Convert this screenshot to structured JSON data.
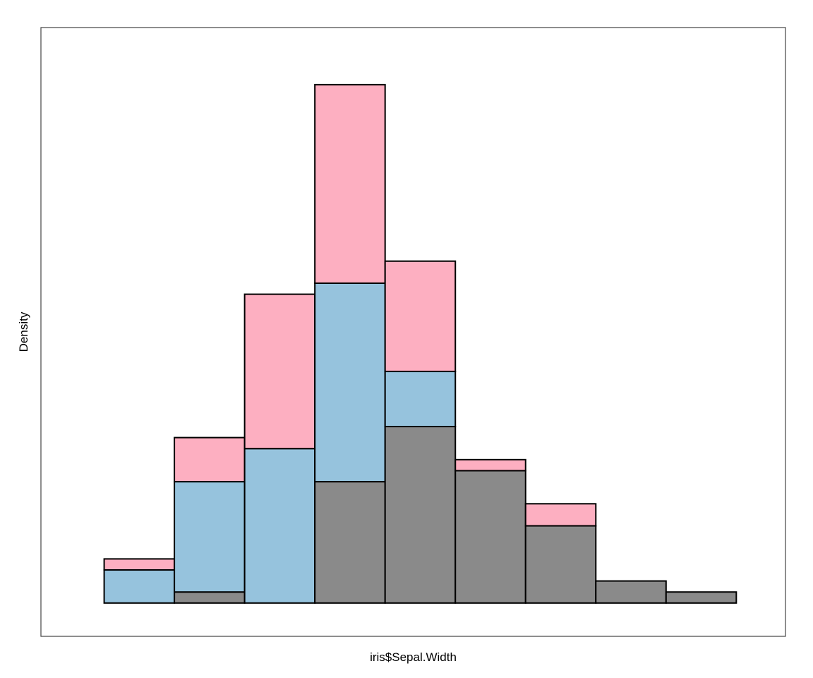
{
  "chart_data": {
    "type": "bar",
    "stacked": true,
    "xlabel": "iris$Sepal.Width",
    "ylabel": "Density",
    "axes_shown": false,
    "grid": false,
    "legend": "none",
    "bins": [
      {
        "from": 2.0,
        "to": 2.2,
        "segments": [
          0,
          3,
          1
        ]
      },
      {
        "from": 2.2,
        "to": 2.4,
        "segments": [
          1,
          10,
          4
        ]
      },
      {
        "from": 2.4,
        "to": 2.6,
        "segments": [
          0,
          14,
          14
        ]
      },
      {
        "from": 2.6,
        "to": 2.8,
        "segments": [
          11,
          18,
          18
        ]
      },
      {
        "from": 2.8,
        "to": 3.0,
        "segments": [
          16,
          5,
          10
        ]
      },
      {
        "from": 3.0,
        "to": 3.2,
        "segments": [
          12,
          0,
          1
        ]
      },
      {
        "from": 3.2,
        "to": 3.4,
        "segments": [
          7,
          0,
          2
        ]
      },
      {
        "from": 3.4,
        "to": 3.6,
        "segments": [
          2,
          0,
          0
        ]
      },
      {
        "from": 3.6,
        "to": 3.8,
        "segments": [
          1,
          0,
          0
        ]
      }
    ],
    "series": [
      {
        "color": "#8a8a8a"
      },
      {
        "color": "#96c3dd"
      },
      {
        "color": "#fdafc1"
      }
    ],
    "xlim": [
      1.82,
      3.94
    ],
    "ylim": [
      -3.02,
      52.18
    ]
  }
}
